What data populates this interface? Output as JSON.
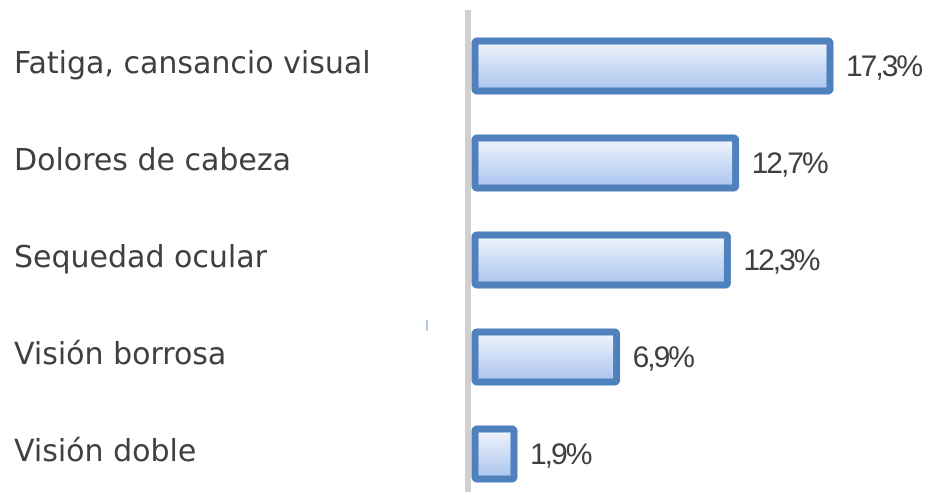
{
  "chart_data": {
    "type": "bar",
    "orientation": "horizontal",
    "categories": [
      "Fatiga, cansancio visual",
      "Dolores de cabeza",
      "Sequedad ocular",
      "Visión borrosa",
      "Visión doble"
    ],
    "values": [
      17.3,
      12.7,
      12.3,
      6.9,
      1.9
    ],
    "value_labels": [
      "17,3%",
      "12,7%",
      "12,3%",
      "6,9%",
      "1,9%"
    ],
    "xlim": [
      0,
      17.3
    ],
    "grid": false,
    "legend": "none",
    "title": "",
    "xlabel": "",
    "ylabel": ""
  },
  "colors": {
    "bar_border": "#4f81bd",
    "bar_fill_top": "#f2f6fd",
    "bar_fill_bottom": "#a9c4ee",
    "axis": "#d0d0d0",
    "text": "#404040"
  }
}
